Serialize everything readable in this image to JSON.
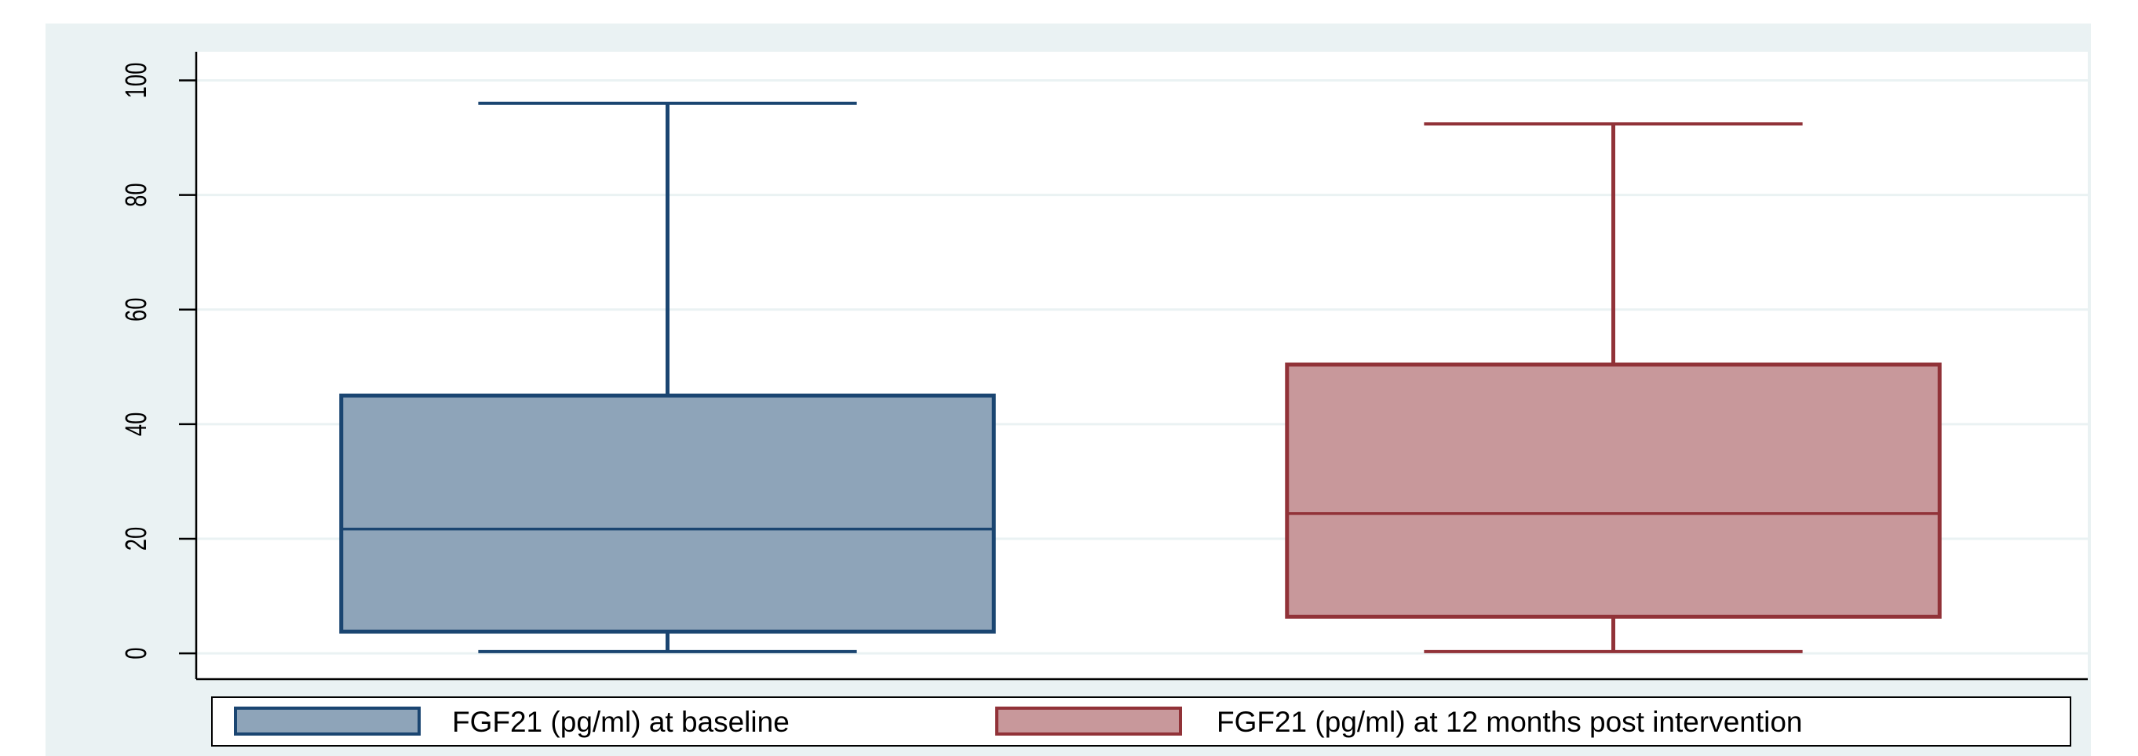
{
  "chart_data": {
    "type": "box",
    "title": "",
    "xlabel": "",
    "ylabel": "",
    "ylim": [
      -4.5,
      105
    ],
    "yticks": [
      0,
      20,
      40,
      60,
      80,
      100
    ],
    "grid": true,
    "legend_position": "bottom",
    "series": [
      {
        "name": "FGF21 (pg/ml) at baseline",
        "color": "#8ea4b9",
        "edge_color": "#1a4571",
        "min": 0.3,
        "q1": 3.8,
        "median": 21.7,
        "q3": 45.0,
        "max": 96.0
      },
      {
        "name": "FGF21 (pg/ml) at 12 months post intervention",
        "color": "#c8989b",
        "edge_color": "#913238",
        "min": 0.3,
        "q1": 6.4,
        "median": 24.4,
        "q3": 50.4,
        "max": 92.4
      }
    ]
  }
}
